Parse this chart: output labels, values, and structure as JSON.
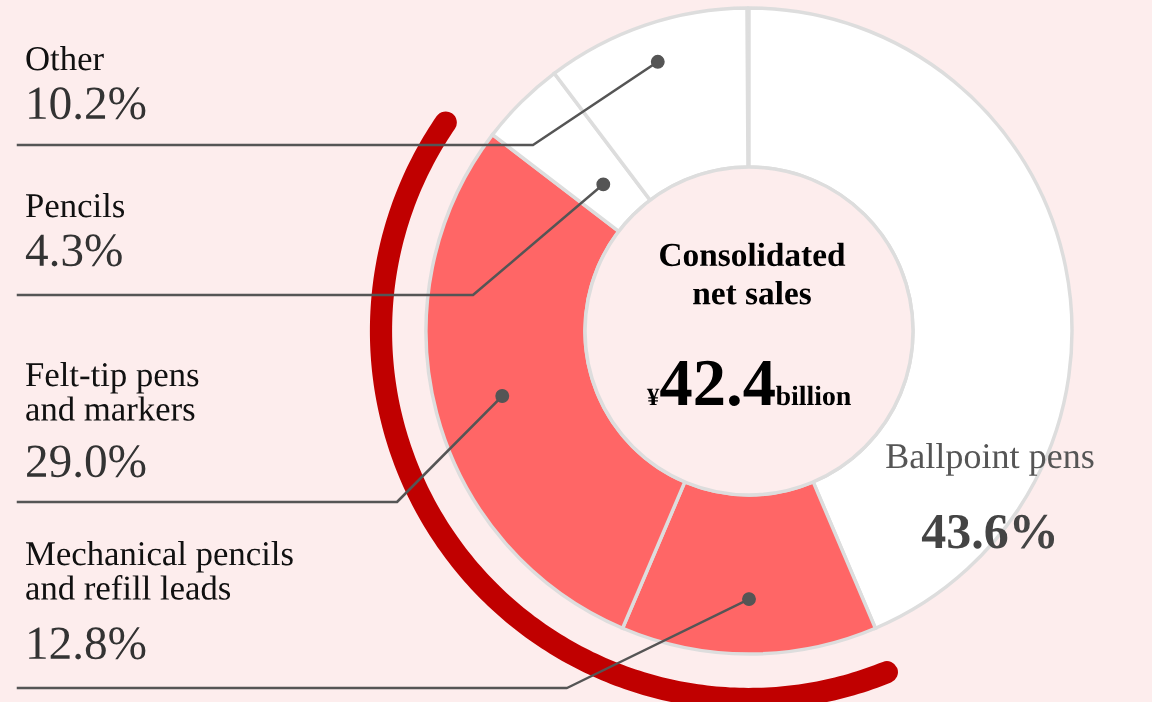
{
  "chart_data": {
    "type": "donut",
    "title": "Consolidated\nnet sales",
    "categories": [
      "Ballpoint pens",
      "Mechanical pencils\nand refill leads",
      "Felt-tip pens\nand markers",
      "Pencils",
      "Other"
    ],
    "values": [
      43.6,
      12.8,
      29.0,
      4.3,
      10.2
    ],
    "colors": [
      "#ffffff",
      "#ff6666",
      "#ff6666",
      "#ffffff",
      "#ffffff"
    ],
    "value_labels": [
      "43.6%",
      "12.8%",
      "29.0%",
      "4.3%",
      "10.2%"
    ],
    "annotations": [
      "¥",
      "42.4",
      "billion"
    ]
  }
}
